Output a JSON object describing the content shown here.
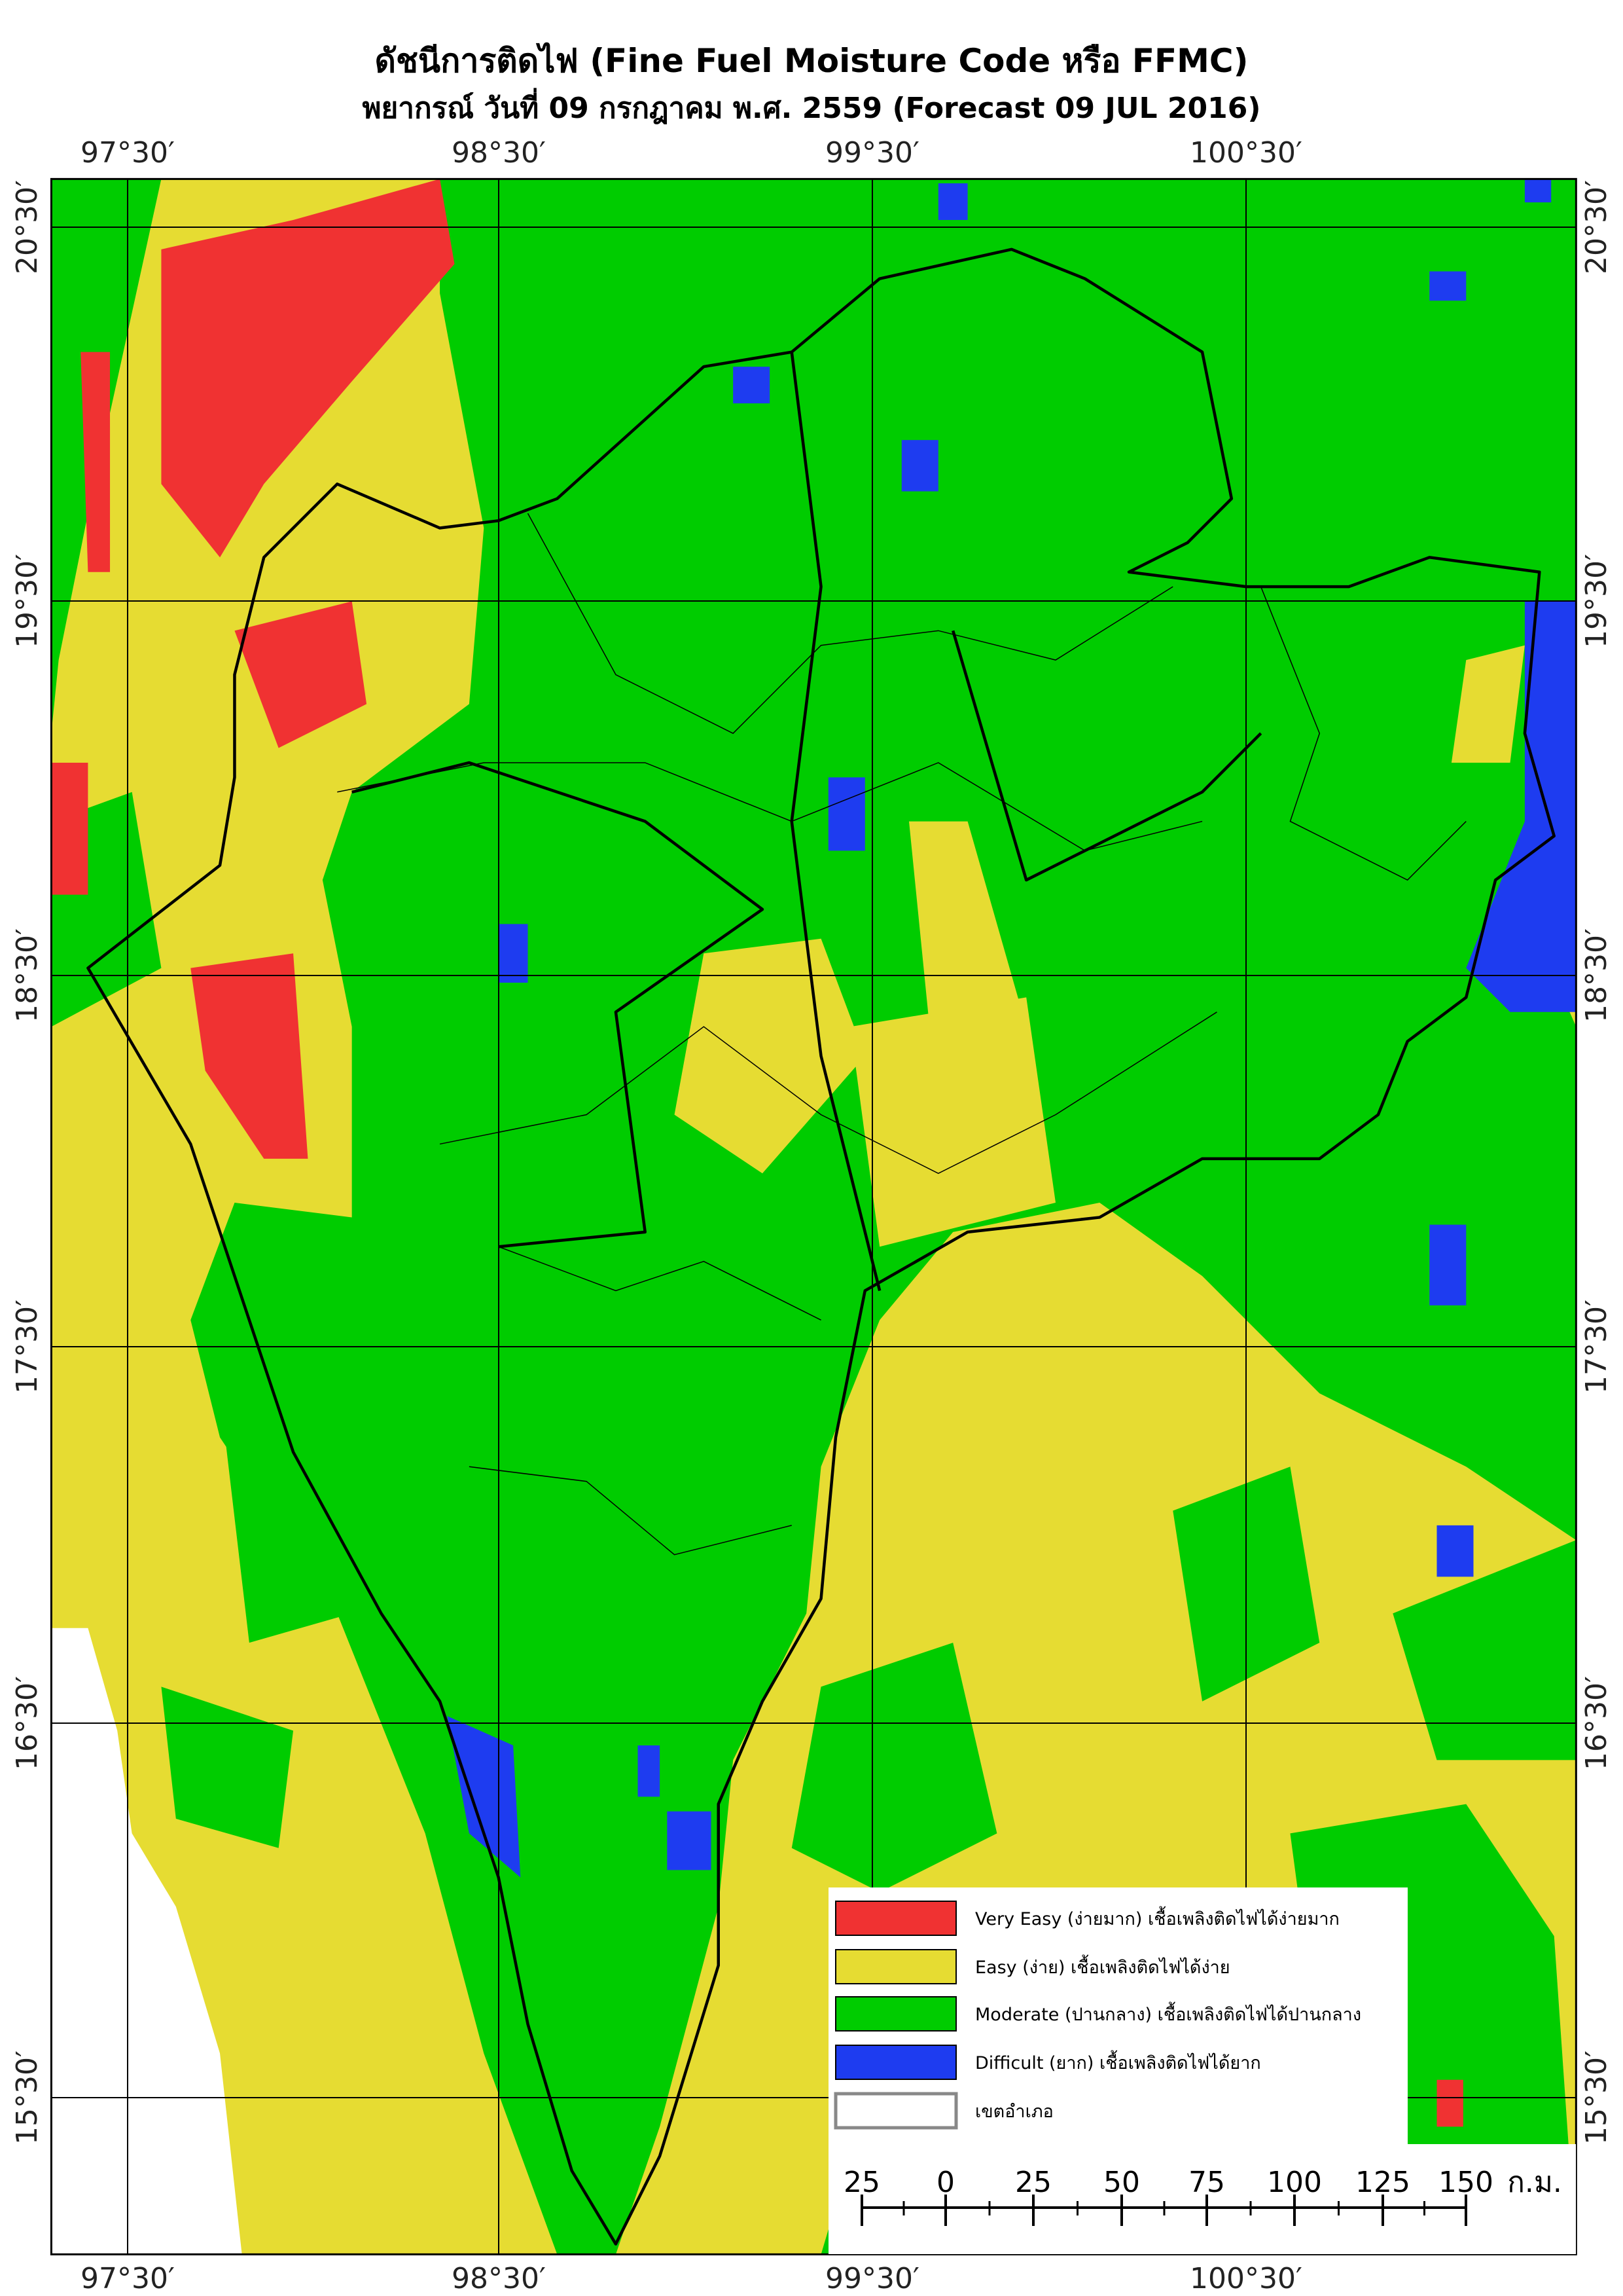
{
  "title": "ดัชนีการติดไฟ (Fine Fuel Moisture Code หรือ FFMC)",
  "subtitle": "พยากรณ์ วันที่ 09 กรกฎาคม พ.ศ. 2559 (Forecast 09 JUL 2016)",
  "longitude_labels": [
    "97°30′",
    "98°30′",
    "99°30′",
    "100°30′"
  ],
  "latitude_labels": [
    "20°30′",
    "19°30′",
    "18°30′",
    "17°30′",
    "16°30′",
    "15°30′"
  ],
  "legend": [
    {
      "label": "Very Easy (ง่ายมาก) เชื้อเพลิงติดไฟได้ง่ายมาก",
      "color": "#f03232"
    },
    {
      "label": "Easy (ง่าย) เชื้อเพลิงติดไฟได้ง่าย",
      "color": "#e6dc32"
    },
    {
      "label": "Moderate (ปานกลาง) เชื้อเพลิงติดไฟได้ปานกลาง",
      "color": "#00cc00"
    },
    {
      "label": "Difficult (ยาก) เชื้อเพลิงติดไฟได้ยาก",
      "color": "#1e3cf0"
    },
    {
      "label": "เขตอำเภอ",
      "color": "#ffffff"
    }
  ],
  "scale_bar": {
    "labels": [
      25,
      0,
      25,
      50,
      75,
      100,
      125,
      150
    ],
    "unit": "ก.ม."
  }
}
